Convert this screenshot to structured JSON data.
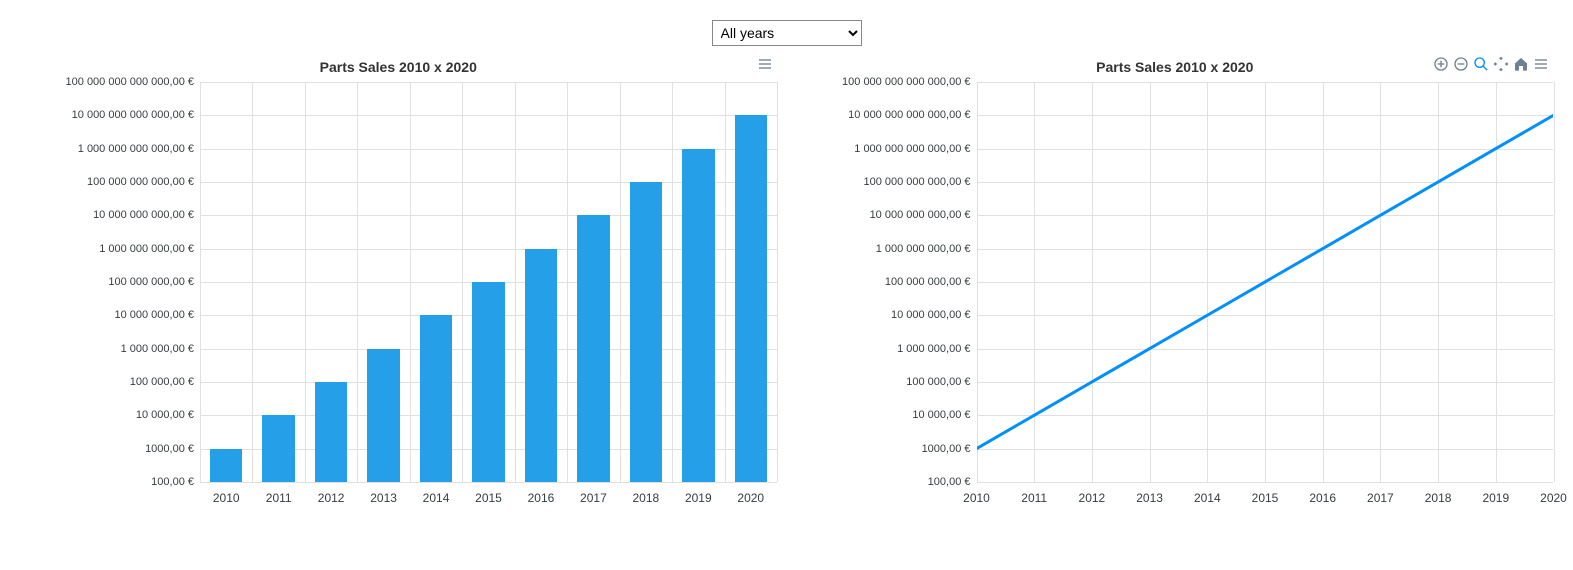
{
  "selector": {
    "selected": "All years"
  },
  "bar_chart": {
    "type": "bar",
    "title": "Parts Sales 2010 x 2020",
    "categories": [
      "2010",
      "2011",
      "2012",
      "2013",
      "2014",
      "2015",
      "2016",
      "2017",
      "2018",
      "2019",
      "2020"
    ],
    "values": [
      1000,
      10000,
      100000,
      1000000,
      10000000,
      100000000,
      1000000000,
      10000000000,
      100000000000,
      1000000000000,
      10000000000000
    ],
    "bar_color": "#25a0e8",
    "scale": "log",
    "ylim_exp": [
      2,
      14
    ],
    "y_tick_labels": [
      "100,00 €",
      "1000,00 €",
      "10 000,00 €",
      "100 000,00 €",
      "1 000 000,00 €",
      "10 000 000,00 €",
      "100 000 000,00 €",
      "1 000 000 000,00 €",
      "10 000 000 000,00 €",
      "100 000 000 000,00 €",
      "1 000 000 000 000,00 €",
      "10 000 000 000 000,00 €",
      "100 000 000 000 000,00 €"
    ],
    "background_color": "#ffffff",
    "grid_color": "#e0e0e0",
    "title_fontsize": 14,
    "label_fontsize": 11,
    "bar_width_ratio": 0.62
  },
  "line_chart": {
    "type": "line",
    "title": "Parts Sales 2010 x 2020",
    "categories": [
      "2010",
      "2011",
      "2012",
      "2013",
      "2014",
      "2015",
      "2016",
      "2017",
      "2018",
      "2019",
      "2020"
    ],
    "values": [
      1000,
      10000,
      100000,
      1000000,
      10000000,
      100000000,
      1000000000,
      10000000000,
      100000000000,
      1000000000000,
      10000000000000
    ],
    "line_color": "#008ffb",
    "line_width": 3,
    "scale": "log",
    "ylim_exp": [
      2,
      14
    ],
    "y_tick_labels": [
      "100,00 €",
      "1000,00 €",
      "10 000,00 €",
      "100 000,00 €",
      "1 000 000,00 €",
      "10 000 000,00 €",
      "100 000 000,00 €",
      "1 000 000 000,00 €",
      "10 000 000 000,00 €",
      "100 000 000 000,00 €",
      "1 000 000 000 000,00 €",
      "10 000 000 000 000,00 €",
      "100 000 000 000 000,00 €"
    ],
    "background_color": "#ffffff",
    "grid_color": "#e0e0e0",
    "title_fontsize": 14,
    "label_fontsize": 11,
    "toolbar_active": "zoom"
  }
}
